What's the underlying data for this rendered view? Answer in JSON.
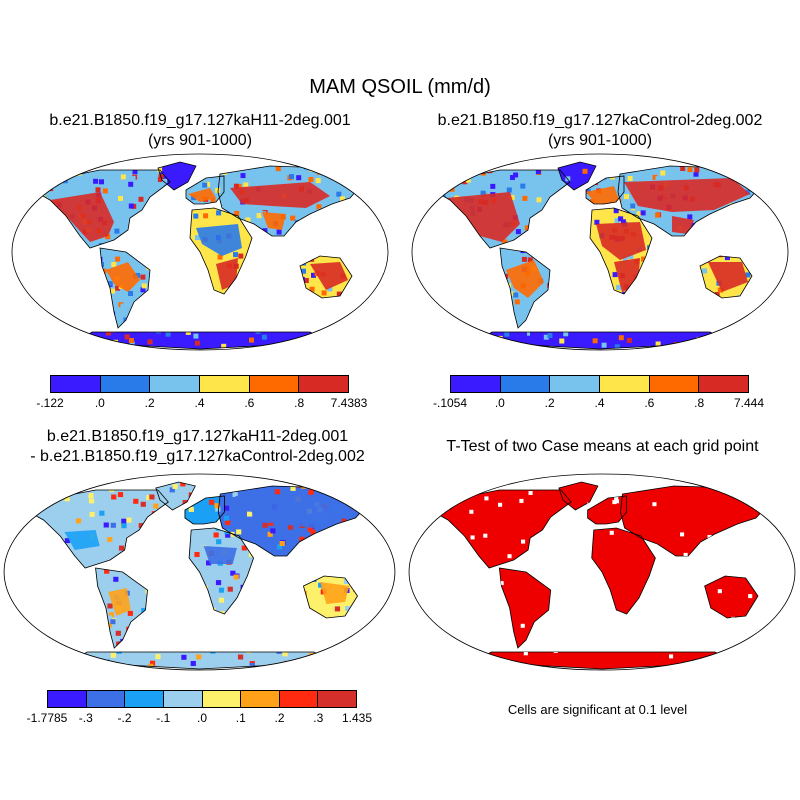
{
  "title": "MAM QSOIL (mm/d)",
  "panels": {
    "p1": {
      "title": "b.e21.B1850.f19_g17.127kaH11-2deg.001",
      "subtitle": "(yrs 901-1000)"
    },
    "p2": {
      "title": "b.e21.B1850.f19_g17.127kaControl-2deg.002",
      "subtitle": "(yrs 901-1000)"
    },
    "p3": {
      "title": "b.e21.B1850.f19_g17.127kaH11-2deg.001",
      "subtitle": "- b.e21.B1850.f19_g17.127kaControl-2deg.002"
    },
    "p4": {
      "title": "T-Test of two Case means at each grid point",
      "note": "Cells are significant at 0.1 level"
    }
  },
  "colorbars": {
    "cb1": {
      "labels": [
        "-.122",
        ".0",
        ".2",
        ".4",
        ".6",
        ".8",
        "7.4383"
      ],
      "colors": [
        "#3a1aff",
        "#2a7bea",
        "#78c2ee",
        "#fde54a",
        "#ff6a00",
        "#d82a25"
      ]
    },
    "cb2": {
      "labels": [
        "-.1054",
        ".0",
        ".2",
        ".4",
        ".6",
        ".8",
        "7.444"
      ],
      "colors": [
        "#3a1aff",
        "#2a7bea",
        "#78c2ee",
        "#fde54a",
        "#ff6a00",
        "#d82a25"
      ]
    },
    "cb3": {
      "labels": [
        "-1.7785",
        "-.3",
        "-.2",
        "-.1",
        ".0",
        ".1",
        ".2",
        ".3",
        "1.435"
      ],
      "colors": [
        "#3a1aff",
        "#3d6fe6",
        "#1aa1f5",
        "#9ccfee",
        "#fdf06a",
        "#ffa21a",
        "#ff2a10",
        "#d42f2a"
      ]
    }
  },
  "styles": {
    "ocean": "#ffffff",
    "coast": "#000000",
    "ttest_sig": "#ee0000"
  }
}
